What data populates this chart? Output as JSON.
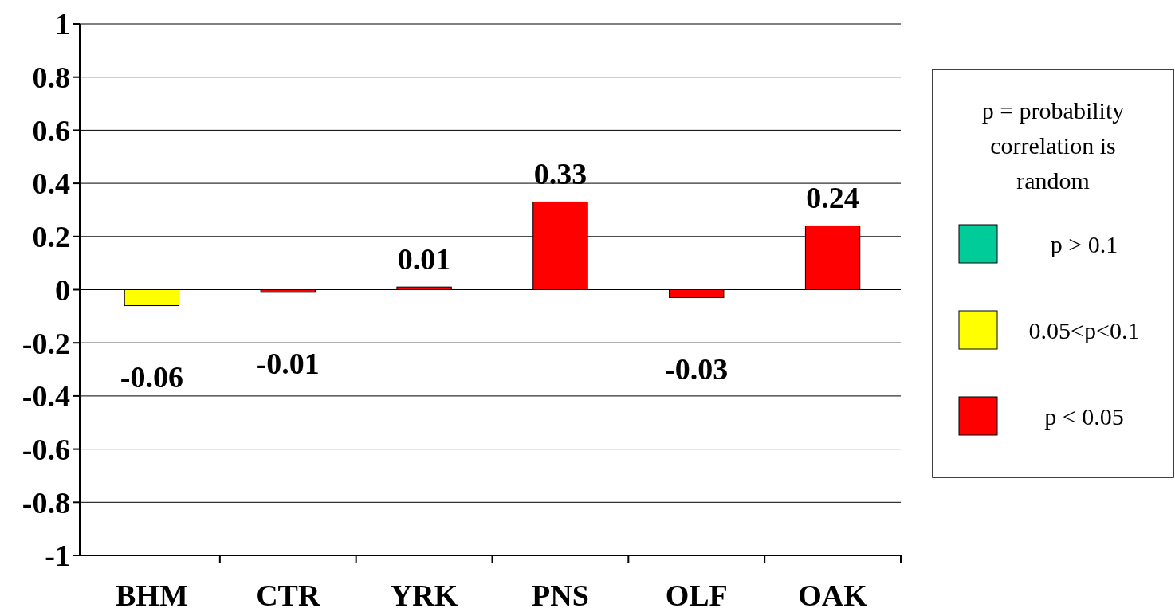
{
  "chart_data": {
    "type": "bar",
    "categories": [
      "BHM",
      "CTR",
      "YRK",
      "PNS",
      "OLF",
      "OAK"
    ],
    "series": [
      {
        "name": "p > 0.1",
        "color": "#00cc99",
        "values": [
          null,
          null,
          null,
          null,
          null,
          null
        ]
      },
      {
        "name": "0.05<p<0.1",
        "color": "#ffff00",
        "values": [
          -0.06,
          null,
          null,
          null,
          null,
          null
        ]
      },
      {
        "name": "p < 0.05",
        "color": "#ff0000",
        "values": [
          null,
          -0.01,
          0.01,
          0.33,
          -0.03,
          0.24
        ]
      }
    ],
    "data_labels": true,
    "legend_title": "p = probability correlation is random",
    "legend": "right",
    "ylim": [
      -1,
      1
    ],
    "yticks": [
      -1,
      -0.8,
      -0.6,
      -0.4,
      -0.2,
      0,
      0.2,
      0.4,
      0.6,
      0.8,
      1
    ],
    "grid": "y"
  }
}
